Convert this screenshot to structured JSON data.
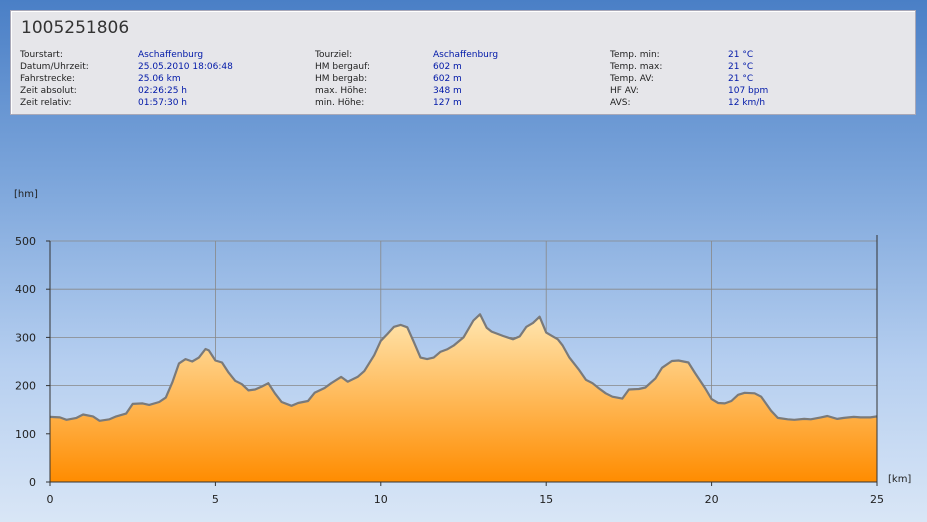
{
  "tour_id": "1005251806",
  "info": {
    "col1": [
      {
        "label": "Tourstart:",
        "value": "Aschaffenburg"
      },
      {
        "label": "Datum/Uhrzeit:",
        "value": "25.05.2010 18:06:48"
      },
      {
        "label": "Fahrstrecke:",
        "value": "25.06 km"
      },
      {
        "label": "Zeit absolut:",
        "value": "02:26:25 h"
      },
      {
        "label": "Zeit relativ:",
        "value": "01:57:30 h"
      }
    ],
    "col2": [
      {
        "label": "Tourziel:",
        "value": "Aschaffenburg"
      },
      {
        "label": "HM bergauf:",
        "value": "602 m"
      },
      {
        "label": "HM bergab:",
        "value": "602 m"
      },
      {
        "label": "max. Höhe:",
        "value": "348 m"
      },
      {
        "label": "min. Höhe:",
        "value": "127 m"
      }
    ],
    "col3": [
      {
        "label": "Temp. min:",
        "value": "21 °C"
      },
      {
        "label": "Temp. max:",
        "value": "21 °C"
      },
      {
        "label": "Temp. AV:",
        "value": "21 °C"
      },
      {
        "label": "HF AV:",
        "value": "107 bpm"
      },
      {
        "label": "AVS:",
        "value": "12 km/h"
      }
    ]
  },
  "colors": {
    "fill_top": "#ffe6b0",
    "fill_bottom": "#ff8c00",
    "line": "#7a7a7a",
    "grid": "#888888"
  },
  "chart_data": {
    "type": "area",
    "xlabel": "[km]",
    "ylabel": "[hm]",
    "xlim": [
      0,
      25
    ],
    "ylim": [
      0,
      500
    ],
    "x_ticks": [
      "0",
      "5",
      "10",
      "15",
      "20",
      "25"
    ],
    "y_ticks": [
      "0",
      "100",
      "200",
      "300",
      "400",
      "500"
    ],
    "grid": true,
    "series": [
      {
        "x": [
          0,
          0.3,
          0.5,
          0.8,
          1.0,
          1.3,
          1.5,
          1.8,
          2.0,
          2.3,
          2.5,
          2.8,
          3.0,
          3.3,
          3.5,
          3.7,
          3.9,
          4.1,
          4.3,
          4.5,
          4.7,
          4.8,
          5.0,
          5.2,
          5.4,
          5.6,
          5.8,
          6.0,
          6.2,
          6.4,
          6.6,
          6.8,
          7.0,
          7.3,
          7.5,
          7.8,
          8.0,
          8.3,
          8.5,
          8.8,
          9.0,
          9.3,
          9.5,
          9.8,
          10.0,
          10.2,
          10.4,
          10.6,
          10.8,
          11.0,
          11.2,
          11.4,
          11.6,
          11.8,
          12.0,
          12.2,
          12.5,
          12.8,
          13.0,
          13.2,
          13.35,
          13.5,
          13.7,
          14.0,
          14.2,
          14.4,
          14.6,
          14.8,
          15.0,
          15.2,
          15.35,
          15.5,
          15.7,
          16.0,
          16.2,
          16.4,
          16.6,
          16.8,
          17.0,
          17.3,
          17.5,
          17.8,
          18.0,
          18.3,
          18.5,
          18.8,
          19.0,
          19.3,
          19.5,
          19.8,
          20.0,
          20.2,
          20.4,
          20.6,
          20.8,
          21.0,
          21.3,
          21.5,
          21.8,
          22.0,
          22.3,
          22.5,
          22.8,
          23.0,
          23.3,
          23.5,
          23.8,
          24.0,
          24.3,
          24.5,
          24.8,
          25.0
        ],
        "values": [
          135,
          134,
          129,
          133,
          140,
          136,
          127,
          130,
          136,
          142,
          162,
          163,
          160,
          166,
          175,
          207,
          246,
          255,
          250,
          258,
          276,
          273,
          252,
          248,
          227,
          210,
          203,
          190,
          192,
          198,
          205,
          184,
          166,
          158,
          164,
          168,
          185,
          195,
          205,
          218,
          208,
          218,
          230,
          263,
          293,
          307,
          322,
          326,
          321,
          290,
          258,
          255,
          258,
          270,
          275,
          283,
          300,
          335,
          348,
          320,
          312,
          308,
          303,
          296,
          302,
          322,
          330,
          343,
          310,
          302,
          296,
          283,
          258,
          232,
          212,
          205,
          194,
          184,
          177,
          173,
          192,
          193,
          196,
          215,
          237,
          251,
          252,
          248,
          226,
          195,
          172,
          164,
          163,
          168,
          181,
          185,
          184,
          177,
          148,
          133,
          130,
          129,
          131,
          130,
          134,
          137,
          131,
          133,
          135,
          134,
          134,
          136
        ]
      }
    ]
  }
}
